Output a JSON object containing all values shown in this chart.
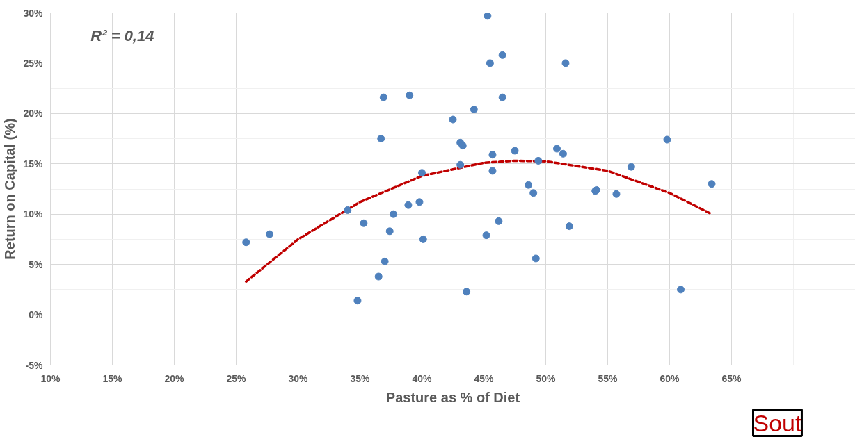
{
  "chart_data": {
    "type": "scatter",
    "xlabel": "Pasture as % of Diet",
    "ylabel": "Return on Capital (%)",
    "annotations": [
      "R² = 0,14",
      "Sout"
    ],
    "xlim": [
      10,
      75
    ],
    "xticks": [
      {
        "value": 10,
        "label": "10%"
      },
      {
        "value": 15,
        "label": "15%"
      },
      {
        "value": 20,
        "label": "20%"
      },
      {
        "value": 25,
        "label": "25%"
      },
      {
        "value": 30,
        "label": "30%"
      },
      {
        "value": 35,
        "label": "35%"
      },
      {
        "value": 40,
        "label": "40%"
      },
      {
        "value": 45,
        "label": "45%"
      },
      {
        "value": 50,
        "label": "50%"
      },
      {
        "value": 55,
        "label": "55%"
      },
      {
        "value": 60,
        "label": "60%"
      },
      {
        "value": 65,
        "label": "65%"
      },
      {
        "value": 70,
        "label": null
      }
    ],
    "ylim": [
      -5,
      30
    ],
    "yticks": [
      {
        "value": -5,
        "label": "-5%"
      },
      {
        "value": -2.5,
        "label": null
      },
      {
        "value": 0,
        "label": "0%"
      },
      {
        "value": 2.5,
        "label": null
      },
      {
        "value": 5,
        "label": "5%"
      },
      {
        "value": 7.5,
        "label": null
      },
      {
        "value": 10,
        "label": "10%"
      },
      {
        "value": 12.5,
        "label": null
      },
      {
        "value": 15,
        "label": "15%"
      },
      {
        "value": 17.5,
        "label": null
      },
      {
        "value": 20,
        "label": "20%"
      },
      {
        "value": 22.5,
        "label": null
      },
      {
        "value": 25,
        "label": "25%"
      },
      {
        "value": 27.5,
        "label": null
      },
      {
        "value": 30,
        "label": "30%"
      }
    ],
    "grid": true,
    "marker": "circle",
    "series": [
      {
        "color": "#4f81bd",
        "x": [
          25.8,
          27.7,
          34.0,
          34.8,
          35.3,
          36.5,
          36.7,
          36.9,
          37.0,
          37.4,
          37.7,
          39.0,
          38.9,
          39.8,
          40.0,
          40.1,
          42.5,
          44.2,
          45.3,
          45.5,
          46.5,
          46.5,
          43.1,
          43.3,
          43.1,
          45.7,
          45.7,
          47.5,
          49.4,
          50.9,
          51.4,
          51.6,
          48.6,
          49.0,
          54.0,
          54.1,
          55.7,
          56.9,
          59.8,
          63.4,
          46.2,
          45.2,
          51.9,
          49.2,
          43.6,
          60.9
        ],
        "values": [
          7.2,
          8.0,
          10.4,
          1.4,
          9.1,
          3.8,
          17.5,
          21.6,
          5.3,
          8.3,
          10.0,
          21.8,
          10.9,
          11.2,
          14.1,
          7.5,
          19.4,
          20.4,
          29.7,
          25.0,
          25.8,
          21.6,
          17.1,
          16.8,
          14.9,
          15.9,
          14.3,
          16.3,
          15.3,
          16.5,
          16.0,
          25.0,
          12.9,
          12.1,
          12.3,
          12.4,
          12.0,
          14.7,
          17.4,
          13.0,
          9.3,
          7.9,
          8.8,
          5.6,
          2.3,
          2.5
        ]
      },
      {
        "type": "line",
        "color": "#c00000",
        "line_style": "dashed",
        "marker": "none",
        "x": [
          25.8,
          30,
          35,
          40,
          45,
          47.5,
          50,
          55,
          60,
          63.4
        ],
        "values": [
          3.3,
          7.5,
          11.2,
          13.8,
          15.1,
          15.3,
          15.25,
          14.3,
          12.1,
          10.0
        ]
      }
    ]
  }
}
